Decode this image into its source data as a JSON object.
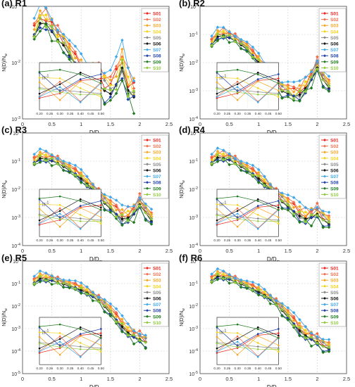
{
  "figure": {
    "y_label": "N(D)/N",
    "y_label_sub": "w",
    "x_label": "D/D",
    "x_label_sub": "m"
  },
  "series": [
    {
      "name": "S01",
      "color": "#e8231c"
    },
    {
      "name": "S02",
      "color": "#f26d4a"
    },
    {
      "name": "S03",
      "color": "#f5a623"
    },
    {
      "name": "S04",
      "color": "#f2d21b"
    },
    {
      "name": "S05",
      "color": "#888888"
    },
    {
      "name": "S06",
      "color": "#111111"
    },
    {
      "name": "S07",
      "color": "#3fa7e8"
    },
    {
      "name": "S08",
      "color": "#1f3fa8"
    },
    {
      "name": "S09",
      "color": "#1f7a1f"
    },
    {
      "name": "S10",
      "color": "#8fc93a"
    }
  ],
  "chart_data": [
    {
      "type": "line",
      "panel": "(a) R1",
      "xlabel": "D/Dm",
      "ylabel": "N(D)/Nw",
      "xlim": [
        0,
        2.5
      ],
      "ylim_log10": [
        -3,
        -1
      ],
      "yscale": "log",
      "xticks": [
        "0",
        "0.5",
        "1",
        "1.5",
        "2",
        "2.5"
      ],
      "yticks": [
        "10^-3",
        "10^-2",
        "10^-1"
      ],
      "x": [
        0.2,
        0.3,
        0.4,
        0.5,
        0.6,
        0.7,
        0.8,
        0.9,
        1.0,
        1.1,
        1.2,
        1.3,
        1.4,
        1.5,
        1.6,
        1.7,
        1.8,
        1.9
      ],
      "base": [
        0.035,
        0.06,
        0.058,
        0.042,
        0.03,
        0.024,
        0.016,
        0.011,
        0.008,
        0.006,
        0.0055,
        0.005,
        0.004,
        0.0035,
        0.005,
        0.01,
        0.004,
        0.003
      ],
      "inset": {
        "x": [
          0.2,
          0.3,
          0.4,
          0.5
        ],
        "xticks": [
          "0.20",
          "0.25",
          "0.30",
          "0.35",
          "0.40",
          "0.45",
          "0.50"
        ],
        "ytick": "10^-1"
      }
    },
    {
      "type": "line",
      "panel": "(b) R2",
      "xlabel": "D/Dm",
      "ylabel": "N(D)/Nw",
      "xlim": [
        0,
        2.5
      ],
      "ylim_log10": [
        -4,
        0
      ],
      "yscale": "log",
      "xticks": [
        "0",
        "0.5",
        "1",
        "1.5",
        "2",
        "2.5"
      ],
      "yticks": [
        "10^-4",
        "10^-3",
        "10^-2",
        "10^-1",
        "10^0"
      ],
      "x": [
        0.2,
        0.3,
        0.4,
        0.5,
        0.6,
        0.7,
        0.8,
        0.9,
        1.0,
        1.1,
        1.2,
        1.3,
        1.4,
        1.5,
        1.6,
        1.7,
        1.8,
        1.9,
        2.0,
        2.1,
        2.2
      ],
      "base": [
        0.05,
        0.1,
        0.11,
        0.09,
        0.07,
        0.05,
        0.035,
        0.02,
        0.012,
        0.006,
        0.003,
        0.0018,
        0.0012,
        0.001,
        0.0008,
        0.0009,
        0.0015,
        0.003,
        0.008,
        0.003,
        0.0015
      ],
      "inset": {
        "x": [
          0.2,
          0.3,
          0.4,
          0.5
        ],
        "xticks": [
          "0.20",
          "0.25",
          "0.30",
          "0.35",
          "0.40",
          "0.45",
          "0.50"
        ],
        "ytick": "10^-1"
      }
    },
    {
      "type": "line",
      "panel": "(c) R3",
      "xlabel": "D/Dm",
      "ylabel": "N(D)/Nw",
      "xlim": [
        0,
        2.5
      ],
      "ylim_log10": [
        -4,
        0
      ],
      "yscale": "log",
      "xticks": [
        "0",
        "0.5",
        "1",
        "1.5",
        "2",
        "2.5"
      ],
      "yticks": [
        "10^-4",
        "10^-3",
        "10^-2",
        "10^-1",
        "10^0"
      ],
      "x": [
        0.2,
        0.3,
        0.4,
        0.5,
        0.6,
        0.7,
        0.8,
        0.9,
        1.0,
        1.1,
        1.2,
        1.3,
        1.4,
        1.5,
        1.6,
        1.7,
        1.8,
        1.9,
        2.0,
        2.1,
        2.2
      ],
      "base": [
        0.1,
        0.15,
        0.14,
        0.12,
        0.1,
        0.075,
        0.055,
        0.04,
        0.028,
        0.018,
        0.011,
        0.007,
        0.004,
        0.0025,
        0.0016,
        0.0011,
        0.0012,
        0.0016,
        0.0035,
        0.0018,
        0.0009
      ],
      "inset": {
        "x": [
          0.2,
          0.3,
          0.4,
          0.5
        ],
        "xticks": [
          "0.20",
          "0.25",
          "0.30",
          "0.35",
          "0.40",
          "0.45",
          "0.50"
        ],
        "ytick": "10^-1"
      }
    },
    {
      "type": "line",
      "panel": "(d) R4",
      "xlabel": "D/Dm",
      "ylabel": "N(D)/Nw",
      "xlim": [
        0,
        2.5
      ],
      "ylim_log10": [
        -4,
        0
      ],
      "yscale": "log",
      "xticks": [
        "0",
        "0.5",
        "1",
        "1.5",
        "2",
        "2.5"
      ],
      "yticks": [
        "10^-4",
        "10^-3",
        "10^-2",
        "10^-1",
        "10^0"
      ],
      "x": [
        0.2,
        0.3,
        0.4,
        0.5,
        0.6,
        0.7,
        0.8,
        0.9,
        1.0,
        1.1,
        1.2,
        1.3,
        1.4,
        1.5,
        1.6,
        1.7,
        1.8,
        1.9,
        2.0,
        2.1,
        2.2
      ],
      "base": [
        0.1,
        0.16,
        0.15,
        0.13,
        0.1,
        0.075,
        0.055,
        0.04,
        0.028,
        0.018,
        0.011,
        0.007,
        0.0045,
        0.003,
        0.002,
        0.0014,
        0.0011,
        0.0012,
        0.0016,
        0.001,
        0.0007
      ],
      "inset": {
        "x": [
          0.2,
          0.3,
          0.4,
          0.5
        ],
        "xticks": [
          "0.20",
          "0.25",
          "0.30",
          "0.35",
          "0.40",
          "0.45",
          "0.50"
        ],
        "ytick": "10^-1"
      }
    },
    {
      "type": "line",
      "panel": "(e) R5",
      "xlabel": "D/Dm",
      "ylabel": "N(D)/Nw",
      "xlim": [
        0,
        2.5
      ],
      "ylim_log10": [
        -5,
        0
      ],
      "yscale": "log",
      "xticks": [
        "0",
        "0.5",
        "1",
        "1.5",
        "2",
        "2.5"
      ],
      "yticks": [
        "10^-5",
        "10^-4",
        "10^-3",
        "10^-2",
        "10^-1",
        "10^0"
      ],
      "x": [
        0.2,
        0.3,
        0.4,
        0.5,
        0.6,
        0.7,
        0.8,
        0.9,
        1.0,
        1.1,
        1.2,
        1.3,
        1.4,
        1.5,
        1.6,
        1.7,
        1.8,
        1.9,
        2.0,
        2.1
      ],
      "base": [
        0.12,
        0.2,
        0.18,
        0.16,
        0.13,
        0.11,
        0.09,
        0.075,
        0.06,
        0.045,
        0.03,
        0.02,
        0.012,
        0.006,
        0.003,
        0.0015,
        0.0008,
        0.0005,
        0.0004,
        0.0003
      ],
      "inset": {
        "x": [
          0.2,
          0.3,
          0.4,
          0.5
        ],
        "xticks": [
          "0.20",
          "0.25",
          "0.30",
          "0.35",
          "0.40",
          "0.45",
          "0.50"
        ],
        "ytick": "10^-1"
      }
    },
    {
      "type": "line",
      "panel": "(f) R6",
      "xlabel": "D/Dm",
      "ylabel": "N(D)/Nw",
      "xlim": [
        0,
        2.5
      ],
      "ylim_log10": [
        -5,
        0
      ],
      "yscale": "log",
      "xticks": [
        "0",
        "0.5",
        "1",
        "1.5",
        "2",
        "2.5"
      ],
      "yticks": [
        "10^-5",
        "10^-4",
        "10^-3",
        "10^-2",
        "10^-1",
        "10^0"
      ],
      "x": [
        0.2,
        0.3,
        0.4,
        0.5,
        0.6,
        0.7,
        0.8,
        0.9,
        1.0,
        1.1,
        1.2,
        1.3,
        1.4,
        1.5,
        1.6,
        1.7,
        1.8,
        1.9,
        2.0,
        2.1,
        2.2
      ],
      "base": [
        0.15,
        0.25,
        0.22,
        0.18,
        0.14,
        0.11,
        0.085,
        0.065,
        0.05,
        0.035,
        0.022,
        0.014,
        0.008,
        0.004,
        0.002,
        0.001,
        0.0006,
        0.0004,
        0.0003,
        0.0002,
        0.00015
      ],
      "inset": {
        "x": [
          0.2,
          0.3,
          0.4,
          0.5
        ],
        "xticks": [
          "0.20",
          "0.25",
          "0.30",
          "0.35",
          "0.40",
          "0.45",
          "0.50"
        ],
        "ytick": "10^-1"
      }
    }
  ]
}
